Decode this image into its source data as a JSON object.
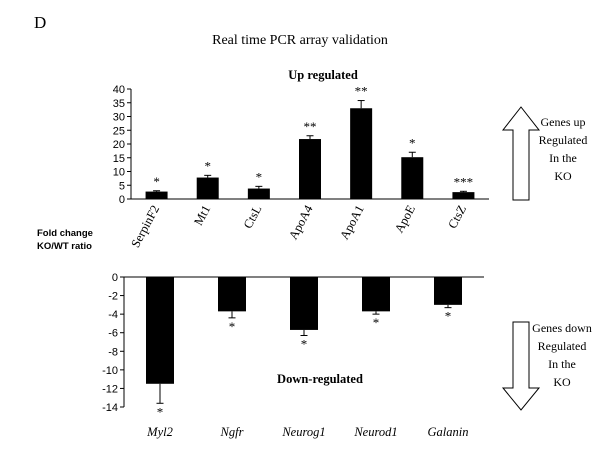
{
  "panel_label": "D",
  "figure_title": "Real time PCR array validation",
  "y_axis_label": [
    "Fold change",
    "KO/WT ratio"
  ],
  "chart_data": [
    {
      "type": "bar",
      "title": "Up regulated",
      "ylabel": "Fold change KO/WT ratio",
      "ylim": [
        0,
        40
      ],
      "yticks": [
        0,
        5,
        10,
        15,
        20,
        25,
        30,
        35,
        40
      ],
      "categories": [
        "SerpinF2",
        "Mt1",
        "CtsL",
        "ApoA4",
        "ApoA1",
        "ApoE",
        "CtsZ"
      ],
      "values": [
        2.7,
        7.8,
        3.8,
        21.8,
        33.0,
        15.2,
        2.5
      ],
      "errors": [
        0.3,
        0.8,
        0.8,
        1.2,
        2.8,
        1.8,
        0.3
      ],
      "significance": [
        "*",
        "*",
        "*",
        "**",
        "**",
        "*",
        "***"
      ],
      "bar_color": "#000000",
      "side_note": [
        "Genes up",
        "Regulated",
        "In the",
        "KO"
      ]
    },
    {
      "type": "bar",
      "title": "Down-regulated",
      "ylabel": "Fold change KO/WT ratio",
      "ylim": [
        -14,
        0
      ],
      "yticks": [
        0,
        -2,
        -4,
        -6,
        -8,
        -10,
        -12,
        -14
      ],
      "categories": [
        "Myl2",
        "Ngfr",
        "Neurog1",
        "Neurod1",
        "Galanin"
      ],
      "values": [
        -11.5,
        -3.7,
        -5.7,
        -3.7,
        -3.0
      ],
      "errors": [
        2.1,
        0.7,
        0.6,
        0.3,
        0.3
      ],
      "significance": [
        "*",
        "*",
        "*",
        "*",
        "*"
      ],
      "bar_color": "#000000",
      "side_note": [
        "Genes down",
        "Regulated",
        "In the",
        "KO"
      ]
    }
  ]
}
